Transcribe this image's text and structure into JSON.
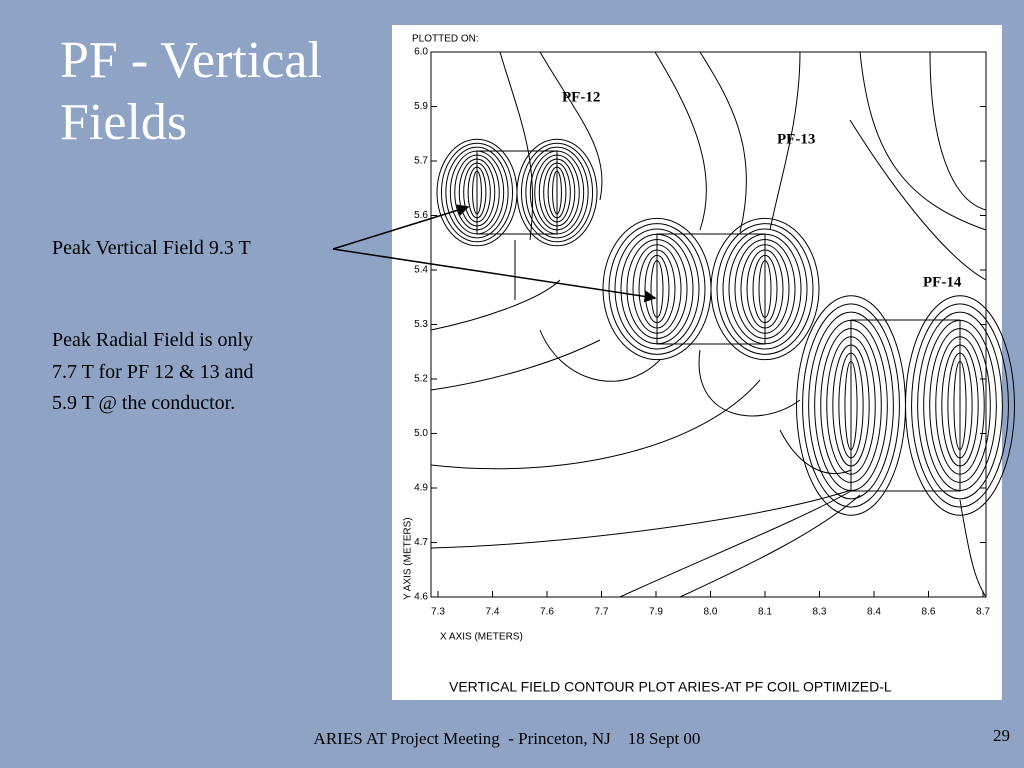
{
  "slide": {
    "title": "PF - Vertical Fields",
    "callout": "Peak Vertical Field 9.3 T",
    "note_lines": [
      "Peak Radial Field is only",
      "7.7 T for PF 12 & 13 and",
      "5.9 T @ the conductor."
    ],
    "footer": "ARIES AT Project Meeting  - Princeton, NJ    18 Sept 00",
    "page_number": "29"
  },
  "plot": {
    "header": "PLOTTED ON:",
    "x_axis_label": "X AXIS (METERS)",
    "y_axis_label": "Y AXIS (METERS)",
    "caption": "VERTICAL FIELD CONTOUR PLOT ARIES-AT PF COIL OPTIMIZED-L",
    "x_tick_labels": [
      "7.3",
      "7.4",
      "7.6",
      "7.7",
      "7.9",
      "8.0",
      "8.1",
      "8.3",
      "8.4",
      "8.6",
      "8.7"
    ],
    "y_tick_labels": [
      "6.0",
      "5.9",
      "5.7",
      "5.6",
      "5.4",
      "5.3",
      "5.2",
      "5.0",
      "4.9",
      "4.7",
      "4.6"
    ],
    "coil_labels": [
      "PF-12",
      "PF-13",
      "PF-14"
    ]
  }
}
